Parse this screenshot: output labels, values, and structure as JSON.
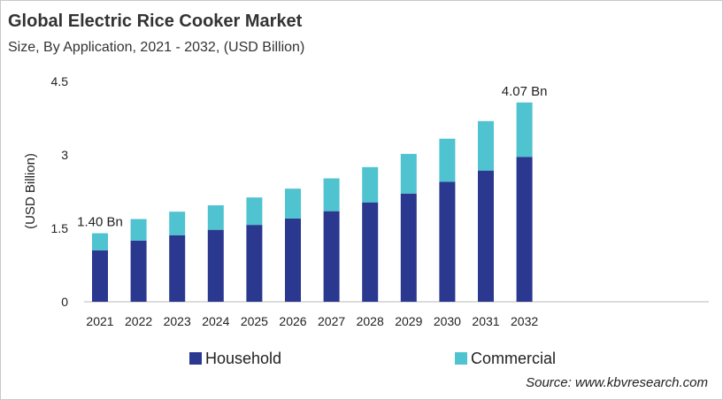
{
  "chart_data": {
    "type": "bar",
    "stacked": true,
    "title": "Global Electric Rice Cooker Market",
    "subtitle": "Size, By Application, 2021 - 2032, (USD Billion)",
    "xlabel": "",
    "ylabel": "(USD Billion)",
    "ylim": [
      0,
      4.5
    ],
    "yticks": [
      "0",
      "1.5",
      "3",
      "4.5"
    ],
    "grid": false,
    "legend_position": "bottom",
    "categories": [
      "2021",
      "2022",
      "2023",
      "2024",
      "2025",
      "2026",
      "2027",
      "2028",
      "2029",
      "2030",
      "2031",
      "2032"
    ],
    "series": [
      {
        "name": "Household",
        "color": "#2b388f",
        "values": [
          1.05,
          1.25,
          1.36,
          1.47,
          1.57,
          1.7,
          1.85,
          2.03,
          2.21,
          2.45,
          2.68,
          2.96
        ]
      },
      {
        "name": "Commercial",
        "color": "#4fc3d0",
        "values": [
          0.35,
          0.44,
          0.48,
          0.5,
          0.56,
          0.61,
          0.67,
          0.72,
          0.81,
          0.88,
          1.01,
          1.11
        ]
      }
    ],
    "annotations": [
      {
        "category": "2021",
        "text": "1.40 Bn"
      },
      {
        "category": "2032",
        "text": "4.07 Bn"
      }
    ]
  },
  "source": "Source: www.kbvresearch.com"
}
